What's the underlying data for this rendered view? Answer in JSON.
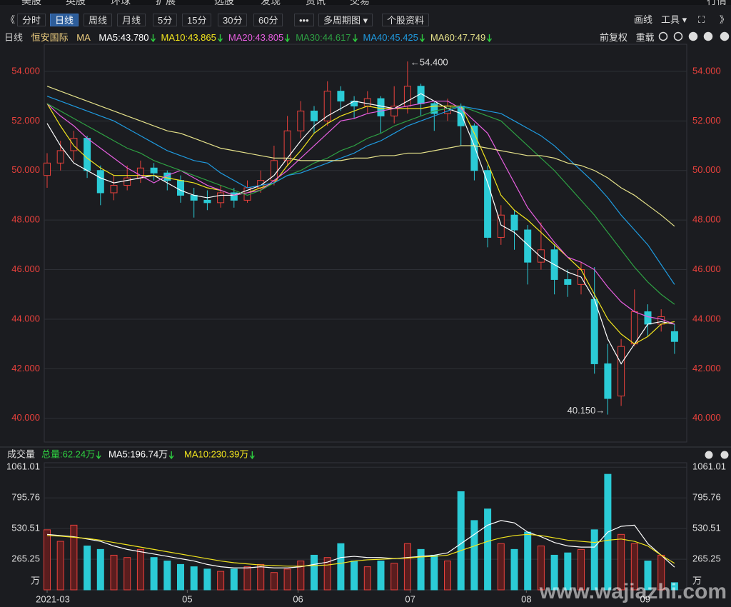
{
  "top_nav": [
    "美股",
    "英股",
    "环球",
    "扩展",
    "选股",
    "发现",
    "资讯",
    "交易",
    "行情"
  ],
  "toolbar": {
    "left": [
      "《",
      "分时",
      "日线",
      "周线",
      "月线",
      "5分",
      "15分",
      "30分",
      "60分",
      "•••",
      "多周期图 ▾",
      "个股资料"
    ],
    "active_index": 2,
    "right": [
      "画线",
      "工具 ▾",
      "⛶",
      "》"
    ]
  },
  "info": {
    "period": "日线",
    "name": "恒安国际",
    "ma_label": "MA",
    "right": [
      "前复权",
      "重载"
    ]
  },
  "chart_data": {
    "type": "candlestick",
    "ylim": [
      39.1,
      54.43
    ],
    "yticks": [
      {
        "value": 40,
        "label": "40.000"
      },
      {
        "value": 42,
        "label": "42.000"
      },
      {
        "value": 44,
        "label": "44.000"
      },
      {
        "value": 46,
        "label": "46.000"
      },
      {
        "value": 48,
        "label": "48.000"
      },
      {
        "value": 50,
        "label": "50.000"
      },
      {
        "value": 52,
        "label": "52.000"
      },
      {
        "value": 54,
        "label": "54.000"
      }
    ],
    "grid": true,
    "up_color": "#e8413c",
    "down_color": "#2bcbd6",
    "candles": [
      [
        49.8,
        50.3,
        50.7,
        49.3
      ],
      [
        50.3,
        50.8,
        51.2,
        50.0
      ],
      [
        50.8,
        51.3,
        51.6,
        50.4
      ],
      [
        51.3,
        50.0,
        51.4,
        49.7
      ],
      [
        50.0,
        49.1,
        50.2,
        48.6
      ],
      [
        49.1,
        49.4,
        49.8,
        48.8
      ],
      [
        49.4,
        49.7,
        50.2,
        49.2
      ],
      [
        49.7,
        50.1,
        50.4,
        49.5
      ],
      [
        50.1,
        49.9,
        50.3,
        49.6
      ],
      [
        49.9,
        49.6,
        50.0,
        49.2
      ],
      [
        49.6,
        49.0,
        49.8,
        48.7
      ],
      [
        49.0,
        48.8,
        49.3,
        48.1
      ],
      [
        48.8,
        48.7,
        49.2,
        48.4
      ],
      [
        48.7,
        49.1,
        49.4,
        48.5
      ],
      [
        49.1,
        48.8,
        49.3,
        48.5
      ],
      [
        48.8,
        49.3,
        49.6,
        48.7
      ],
      [
        49.3,
        49.6,
        50.0,
        49.1
      ],
      [
        49.6,
        50.4,
        51.0,
        49.4
      ],
      [
        50.4,
        51.6,
        52.2,
        50.2
      ],
      [
        51.6,
        52.4,
        52.8,
        51.3
      ],
      [
        52.4,
        52.0,
        52.6,
        51.5
      ],
      [
        52.0,
        53.2,
        53.6,
        51.8
      ],
      [
        53.2,
        52.8,
        53.4,
        52.4
      ],
      [
        52.8,
        52.6,
        53.0,
        52.1
      ],
      [
        52.6,
        52.9,
        53.2,
        52.3
      ],
      [
        52.9,
        52.2,
        53.0,
        51.5
      ],
      [
        52.2,
        52.6,
        53.4,
        51.9
      ],
      [
        52.6,
        53.4,
        54.4,
        52.3
      ],
      [
        53.4,
        52.7,
        53.5,
        52.2
      ],
      [
        52.7,
        52.3,
        52.8,
        51.6
      ],
      [
        52.3,
        52.6,
        52.9,
        52.0
      ],
      [
        52.6,
        51.8,
        52.7,
        51.0
      ],
      [
        51.8,
        50.0,
        51.9,
        49.6
      ],
      [
        50.0,
        47.3,
        50.2,
        46.9
      ],
      [
        47.3,
        48.2,
        48.6,
        47.0
      ],
      [
        48.2,
        47.6,
        48.4,
        46.8
      ],
      [
        47.6,
        46.3,
        47.8,
        45.4
      ],
      [
        46.3,
        46.8,
        47.9,
        46.0
      ],
      [
        46.8,
        45.6,
        47.0,
        45.0
      ],
      [
        45.6,
        45.4,
        46.0,
        44.9
      ],
      [
        45.4,
        46.0,
        46.3,
        45.0
      ],
      [
        44.8,
        42.2,
        46.1,
        41.8
      ],
      [
        42.2,
        40.8,
        43.0,
        40.15
      ],
      [
        40.9,
        42.9,
        43.2,
        40.5
      ],
      [
        43.0,
        44.3,
        45.2,
        42.9
      ],
      [
        44.3,
        43.8,
        44.6,
        43.3
      ],
      [
        43.8,
        44.1,
        44.4,
        43.5
      ],
      [
        43.5,
        43.1,
        43.8,
        42.6
      ]
    ],
    "ma_series": [
      {
        "name": "MA5:43.780",
        "color": "#ffffff",
        "values": [
          51.9,
          51.0,
          50.3,
          50.0,
          49.7,
          49.5,
          49.6,
          49.7,
          49.8,
          49.5,
          49.2,
          49.0,
          48.9,
          49.0,
          49.0,
          49.2,
          49.4,
          49.8,
          50.5,
          51.2,
          51.8,
          52.2,
          52.5,
          52.8,
          52.7,
          52.6,
          52.5,
          52.8,
          53.1,
          52.8,
          52.5,
          52.3,
          51.0,
          49.5,
          47.8,
          47.5,
          47.0,
          46.5,
          46.2,
          45.9,
          45.7,
          44.8,
          43.2,
          42.2,
          43.0,
          43.8,
          43.9,
          43.8
        ]
      },
      {
        "name": "MA10:43.865",
        "color": "#f2e51e",
        "values": [
          52.7,
          51.8,
          51.0,
          50.5,
          50.1,
          49.8,
          49.8,
          49.8,
          49.8,
          49.7,
          49.6,
          49.5,
          49.3,
          49.2,
          49.0,
          49.1,
          49.3,
          49.5,
          50.2,
          50.8,
          51.5,
          51.9,
          52.2,
          52.4,
          52.6,
          52.5,
          52.5,
          52.5,
          52.5,
          52.6,
          52.6,
          52.6,
          51.5,
          50.3,
          49.0,
          48.4,
          48.0,
          47.5,
          47.0,
          46.5,
          46.0,
          45.0,
          44.0,
          43.4,
          43.0,
          43.3,
          43.8,
          43.9
        ]
      },
      {
        "name": "MA20:43.805",
        "color": "#e75fe0",
        "values": [
          52.7,
          52.2,
          51.8,
          51.3,
          50.9,
          50.5,
          50.1,
          49.8,
          49.5,
          49.8,
          50.0,
          49.7,
          49.4,
          49.2,
          49.0,
          49.1,
          49.2,
          49.6,
          50.0,
          50.5,
          51.0,
          51.5,
          52.0,
          52.1,
          52.3,
          52.4,
          52.5,
          52.6,
          52.7,
          52.8,
          52.8,
          52.5,
          52.0,
          51.5,
          50.5,
          49.5,
          48.5,
          47.8,
          47.1,
          46.5,
          46.3,
          46.0,
          45.3,
          44.7,
          44.3,
          44.1,
          44.0,
          43.8
        ]
      },
      {
        "name": "MA30:44.617",
        "color": "#2ea043",
        "values": [
          52.7,
          52.4,
          52.1,
          51.8,
          51.5,
          51.2,
          50.9,
          50.7,
          50.4,
          50.2,
          50.0,
          49.8,
          49.6,
          49.4,
          49.2,
          49.0,
          49.2,
          49.5,
          49.8,
          50.0,
          50.3,
          50.5,
          50.8,
          51.0,
          51.3,
          51.5,
          51.8,
          52.0,
          52.2,
          52.4,
          52.5,
          52.6,
          52.4,
          52.2,
          52.0,
          51.5,
          51.0,
          50.5,
          50.0,
          49.4,
          48.8,
          48.2,
          47.5,
          46.8,
          46.1,
          45.5,
          45.0,
          44.6
        ]
      },
      {
        "name": "MA40:45.425",
        "color": "#1f9be0",
        "values": [
          53.0,
          52.8,
          52.6,
          52.4,
          52.2,
          52.0,
          51.7,
          51.4,
          51.1,
          50.8,
          50.6,
          50.4,
          50.3,
          49.9,
          49.6,
          49.3,
          49.4,
          49.5,
          49.8,
          49.9,
          50.1,
          50.3,
          50.5,
          50.7,
          51.0,
          51.2,
          51.5,
          51.8,
          52.0,
          52.2,
          52.4,
          52.6,
          52.5,
          52.4,
          52.3,
          52.0,
          51.7,
          51.4,
          51.0,
          50.5,
          50.0,
          49.5,
          48.9,
          48.2,
          47.6,
          47.0,
          46.2,
          45.4
        ]
      },
      {
        "name": "MA60:47.749",
        "color": "#e6e28a",
        "values": [
          53.4,
          53.2,
          53.0,
          52.8,
          52.6,
          52.4,
          52.2,
          52.0,
          51.8,
          51.6,
          51.5,
          51.3,
          51.1,
          50.9,
          50.8,
          50.7,
          50.6,
          50.5,
          50.5,
          50.4,
          50.4,
          50.4,
          50.4,
          50.5,
          50.5,
          50.6,
          50.6,
          50.7,
          50.7,
          50.8,
          50.9,
          51.0,
          51.0,
          50.9,
          50.8,
          50.7,
          50.6,
          50.6,
          50.5,
          50.3,
          50.2,
          50.0,
          49.7,
          49.3,
          49.0,
          48.6,
          48.2,
          47.75
        ]
      }
    ],
    "annotations": [
      {
        "text": "←54.400",
        "index": 27,
        "value": 54.4
      },
      {
        "text": "40.150→",
        "index": 42,
        "value": 40.15
      }
    ],
    "volume": {
      "title": "成交量",
      "total": "总量:62.24万",
      "unit": "万",
      "ylim": [
        0,
        1100
      ],
      "yticks": [
        265.25,
        530.51,
        795.76,
        1061.01
      ],
      "values": [
        520,
        420,
        560,
        380,
        350,
        300,
        280,
        350,
        280,
        250,
        220,
        200,
        180,
        160,
        180,
        200,
        220,
        150,
        180,
        250,
        300,
        280,
        400,
        250,
        200,
        250,
        230,
        400,
        350,
        300,
        250,
        850,
        600,
        700,
        400,
        350,
        500,
        380,
        300,
        320,
        350,
        520,
        1000,
        480,
        400,
        250,
        300,
        62.24
      ],
      "ma_series": [
        {
          "name": "MA5:196.74万",
          "color": "#ffffff",
          "values": [
            480,
            470,
            460,
            440,
            420,
            380,
            350,
            330,
            310,
            290,
            270,
            250,
            220,
            200,
            190,
            190,
            200,
            190,
            190,
            200,
            220,
            240,
            280,
            290,
            280,
            280,
            270,
            280,
            290,
            300,
            320,
            400,
            480,
            560,
            600,
            580,
            500,
            460,
            410,
            380,
            370,
            370,
            500,
            550,
            560,
            400,
            300,
            196.74
          ]
        },
        {
          "name": "MA10:230.39万",
          "color": "#f2e51e",
          "values": [
            470,
            465,
            455,
            445,
            430,
            410,
            390,
            370,
            350,
            330,
            310,
            290,
            270,
            250,
            235,
            225,
            215,
            210,
            205,
            205,
            210,
            215,
            230,
            250,
            260,
            265,
            270,
            275,
            285,
            290,
            300,
            340,
            380,
            420,
            450,
            470,
            480,
            470,
            450,
            430,
            420,
            410,
            430,
            440,
            420,
            380,
            300,
            230.39
          ]
        }
      ]
    },
    "xlabels": [
      {
        "index": 0,
        "label": "2021-03"
      },
      {
        "index": 10.5,
        "label": "05"
      },
      {
        "index": 18.8,
        "label": "06"
      },
      {
        "index": 27.2,
        "label": "07"
      },
      {
        "index": 35.9,
        "label": "08"
      },
      {
        "index": 44.8,
        "label": "09"
      }
    ]
  },
  "watermark": "www.wajiazhi.com"
}
